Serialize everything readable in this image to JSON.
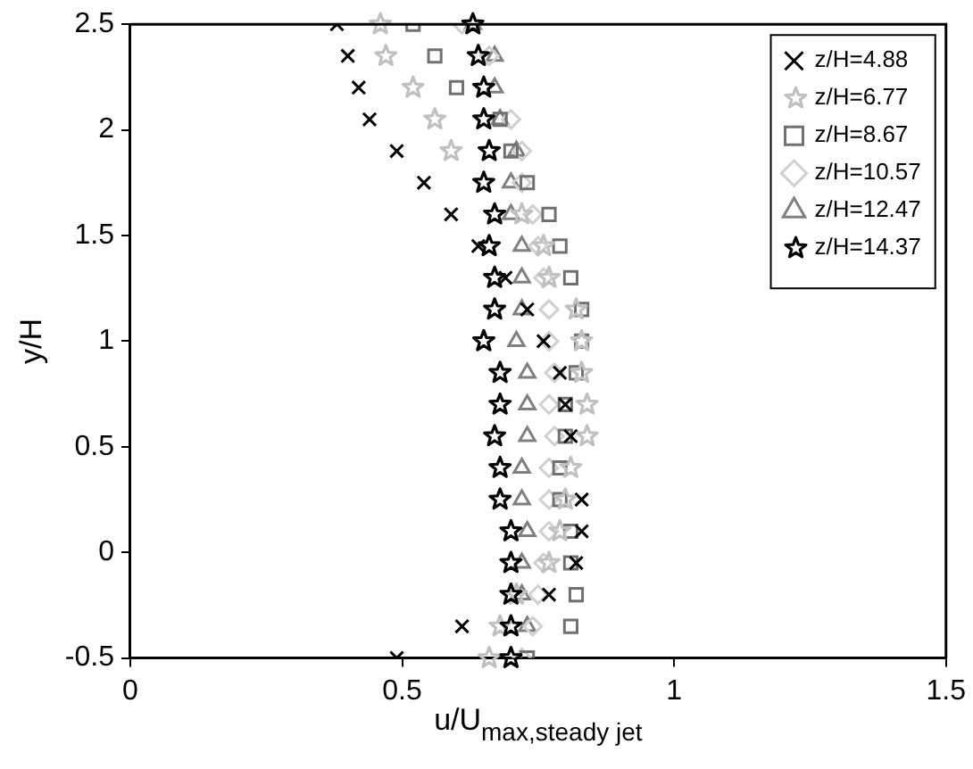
{
  "chart_data": {
    "type": "scatter",
    "xlabel": "u/U$_{max,steady jet}$",
    "ylabel": "y/H",
    "xlim": [
      0,
      1.5
    ],
    "xticks": [
      0,
      0.5,
      1,
      1.5
    ],
    "ylim": [
      -0.5,
      2.5
    ],
    "yticks": [
      -0.5,
      0,
      0.5,
      1,
      1.5,
      2,
      2.5
    ],
    "grid": false,
    "legend": "top right",
    "series": [
      {
        "name": "z/H=4.88",
        "color": "#000000",
        "marker": "cross",
        "x": [
          0.38,
          0.4,
          0.42,
          0.44,
          0.49,
          0.54,
          0.59,
          0.64,
          0.69,
          0.73,
          0.76,
          0.79,
          0.8,
          0.81,
          null,
          0.83,
          0.83,
          0.82,
          0.77,
          0.61,
          0.49
        ],
        "values": [
          2.5,
          2.35,
          2.2,
          2.05,
          1.9,
          1.75,
          1.6,
          1.45,
          1.3,
          1.15,
          1.0,
          0.85,
          0.7,
          0.55,
          null,
          0.25,
          0.1,
          -0.05,
          -0.2,
          -0.35,
          -0.5
        ]
      },
      {
        "name": "z/H=6.77",
        "color": "#c0c0c0",
        "marker": "star",
        "x": [
          0.46,
          0.47,
          0.52,
          0.56,
          0.59,
          null,
          0.72,
          0.76,
          0.77,
          0.82,
          0.83,
          0.83,
          0.84,
          0.84,
          0.81,
          0.8,
          0.79,
          0.77,
          0.71,
          0.68,
          0.66
        ],
        "values": [
          2.5,
          2.35,
          2.2,
          2.05,
          1.9,
          null,
          1.6,
          1.45,
          1.3,
          1.15,
          1.0,
          0.85,
          0.7,
          0.55,
          0.4,
          0.25,
          0.1,
          -0.05,
          -0.2,
          -0.35,
          -0.5
        ]
      },
      {
        "name": "z/H=8.67",
        "color": "#707070",
        "marker": "square",
        "x": [
          0.52,
          0.56,
          0.6,
          0.68,
          0.7,
          0.73,
          0.77,
          0.79,
          0.81,
          0.83,
          0.83,
          0.82,
          0.8,
          0.8,
          0.79,
          0.79,
          0.81,
          0.81,
          0.82,
          0.81,
          0.73
        ],
        "values": [
          2.5,
          2.35,
          2.2,
          2.05,
          1.9,
          1.75,
          1.6,
          1.45,
          1.3,
          1.15,
          1.0,
          0.85,
          0.7,
          0.55,
          0.4,
          0.25,
          0.1,
          -0.05,
          -0.2,
          -0.35,
          -0.5
        ]
      },
      {
        "name": "z/H=10.57",
        "color": "#d0d0d0",
        "marker": "diamond",
        "x": [
          0.61,
          0.66,
          null,
          0.7,
          0.72,
          0.72,
          0.74,
          0.75,
          0.76,
          0.77,
          0.77,
          0.78,
          0.77,
          0.78,
          0.77,
          0.77,
          0.77,
          0.76,
          0.75,
          0.74,
          0.72
        ],
        "values": [
          2.5,
          2.35,
          null,
          2.05,
          1.9,
          1.75,
          1.6,
          1.45,
          1.3,
          1.15,
          1.0,
          0.85,
          0.7,
          0.55,
          0.4,
          0.25,
          0.1,
          -0.05,
          -0.2,
          -0.35,
          -0.5
        ]
      },
      {
        "name": "z/H=12.47",
        "color": "#808080",
        "marker": "triangle",
        "x": [
          0.63,
          0.67,
          0.67,
          0.68,
          0.71,
          0.7,
          0.7,
          0.72,
          0.72,
          0.72,
          0.71,
          0.73,
          0.73,
          0.73,
          0.72,
          0.72,
          0.73,
          0.72,
          0.72,
          0.73,
          null
        ],
        "values": [
          2.5,
          2.35,
          2.2,
          2.05,
          1.9,
          1.75,
          1.6,
          1.45,
          1.3,
          1.15,
          1.0,
          0.85,
          0.7,
          0.55,
          0.4,
          0.25,
          0.1,
          -0.05,
          -0.2,
          -0.35,
          null
        ]
      },
      {
        "name": "z/H=14.37",
        "color": "#000000",
        "marker": "star",
        "x": [
          0.63,
          0.64,
          0.65,
          0.65,
          0.66,
          0.65,
          0.67,
          0.66,
          0.67,
          0.67,
          0.65,
          0.68,
          0.68,
          0.67,
          0.68,
          0.68,
          0.7,
          0.7,
          0.7,
          0.7,
          0.7
        ],
        "values": [
          2.5,
          2.35,
          2.2,
          2.05,
          1.9,
          1.75,
          1.6,
          1.45,
          1.3,
          1.15,
          1.0,
          0.85,
          0.7,
          0.55,
          0.4,
          0.25,
          0.1,
          -0.05,
          -0.2,
          -0.35,
          -0.5
        ]
      }
    ]
  }
}
